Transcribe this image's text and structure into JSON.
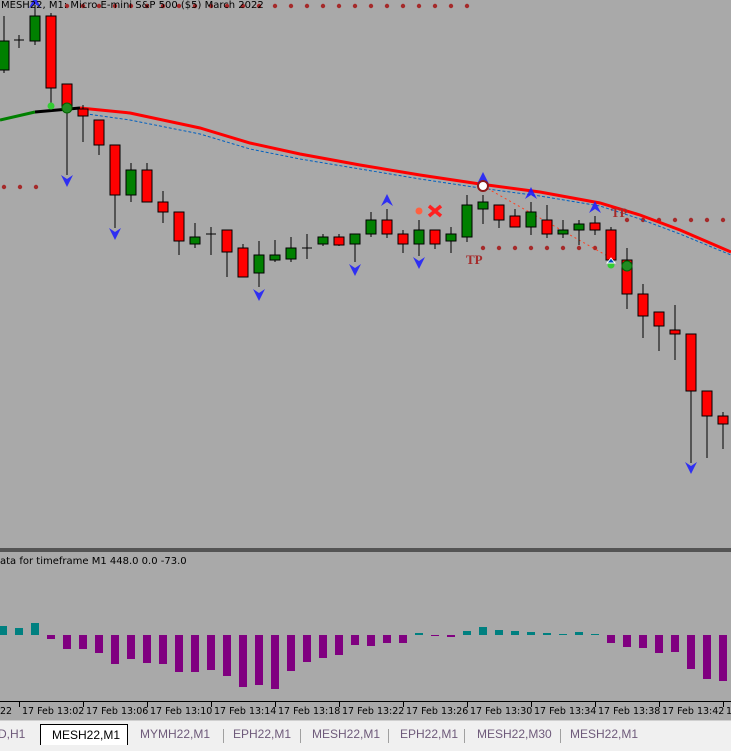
{
  "chart": {
    "title": "MESH22, M1:  Micro E-mini S&P 500 ($5) March 2022",
    "indicator_label": "ata for timeframe M1 448.0 0.0 -73.0",
    "tp_labels": [
      "TP",
      "TP"
    ],
    "colors": {
      "background": "#a9a9a9",
      "bull_candle": "#008000",
      "bear_candle": "#ff0000",
      "moving_average": "#ff0000",
      "histogram_positive": "#008080",
      "histogram_negative": "#800080",
      "signal_arrows": "#1a1aff",
      "dots": "#a52a2a"
    }
  },
  "time_axis": {
    "labels": [
      "22",
      "17 Feb 13:02",
      "17 Feb 13:06",
      "17 Feb 13:10",
      "17 Feb 13:14",
      "17 Feb 13:18",
      "17 Feb 13:22",
      "17 Feb 13:26",
      "17 Feb 13:30",
      "17 Feb 13:34",
      "17 Feb 13:38",
      "17 Feb 13:42",
      "17"
    ]
  },
  "tabs": [
    {
      "label": "D,H1",
      "active": false
    },
    {
      "label": "MESH22,M1",
      "active": true
    },
    {
      "label": "MYMH22,M1",
      "active": false
    },
    {
      "label": "EPH22,M1",
      "active": false
    },
    {
      "label": "MESH22,M1",
      "active": false
    },
    {
      "label": "EPH22,M1",
      "active": false
    },
    {
      "label": "MESH22,M30",
      "active": false
    },
    {
      "label": "MESH22,M1",
      "active": false
    }
  ]
}
